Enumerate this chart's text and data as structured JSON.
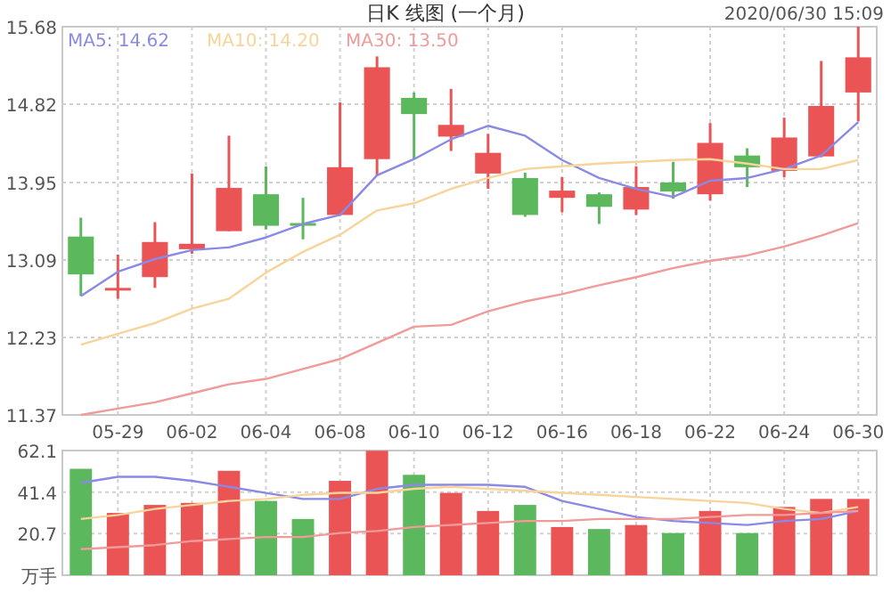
{
  "chart_data": [
    {
      "type": "candlestick",
      "title": "日K 线图 (一个月)",
      "annotations": [
        "2020/06/30 15:09"
      ],
      "categories": [
        null,
        "05-29",
        null,
        "06-02",
        null,
        "06-04",
        null,
        "06-08",
        null,
        "06-10",
        null,
        "06-12",
        null,
        "06-16",
        null,
        "06-18",
        null,
        "06-22",
        null,
        "06-24",
        null,
        "06-30"
      ],
      "ohlc": [
        [
          13.35,
          13.56,
          12.69,
          12.93
        ],
        [
          12.76,
          13.15,
          12.66,
          12.78
        ],
        [
          12.9,
          13.51,
          12.78,
          13.29
        ],
        [
          13.21,
          14.05,
          13.16,
          13.27
        ],
        [
          13.41,
          14.47,
          13.41,
          13.89
        ],
        [
          13.82,
          14.13,
          13.43,
          13.47
        ],
        [
          13.5,
          13.78,
          13.32,
          13.48
        ],
        [
          13.59,
          14.84,
          13.58,
          14.12
        ],
        [
          14.21,
          15.35,
          14.03,
          15.23
        ],
        [
          14.89,
          14.95,
          14.21,
          14.71
        ],
        [
          14.46,
          14.99,
          14.3,
          14.59
        ],
        [
          14.05,
          14.49,
          13.88,
          14.28
        ],
        [
          14.0,
          14.06,
          13.57,
          13.59
        ],
        [
          13.78,
          14.01,
          13.62,
          13.86
        ],
        [
          13.82,
          13.84,
          13.49,
          13.68
        ],
        [
          13.65,
          14.13,
          13.59,
          13.9
        ],
        [
          13.95,
          14.18,
          13.77,
          13.85
        ],
        [
          13.82,
          14.61,
          13.75,
          14.39
        ],
        [
          14.25,
          14.33,
          13.9,
          14.12
        ],
        [
          14.08,
          14.67,
          14.01,
          14.45
        ],
        [
          14.24,
          15.3,
          14.23,
          14.8
        ],
        [
          14.95,
          15.68,
          14.63,
          15.34
        ]
      ],
      "colors": [
        "#5cb85c",
        "#ea5455",
        "#ea5455",
        "#ea5455",
        "#ea5455",
        "#5cb85c",
        "#5cb85c",
        "#ea5455",
        "#ea5455",
        "#5cb85c",
        "#ea5455",
        "#ea5455",
        "#5cb85c",
        "#ea5455",
        "#5cb85c",
        "#ea5455",
        "#5cb85c",
        "#ea5455",
        "#5cb85c",
        "#ea5455",
        "#ea5455",
        "#ea5455"
      ],
      "series": [
        {
          "type": "line",
          "name": "MA5: 14.62",
          "color": "#8a8ae6",
          "values": [
            12.69,
            12.96,
            13.1,
            13.2,
            13.23,
            13.34,
            13.49,
            13.59,
            14.03,
            14.21,
            14.43,
            14.58,
            14.47,
            14.2,
            14.0,
            13.88,
            13.79,
            13.97,
            14.0,
            14.1,
            14.25,
            14.62
          ]
        },
        {
          "type": "line",
          "name": "MA10: 14.20",
          "color": "#f7d49a",
          "values": [
            12.15,
            12.27,
            12.39,
            12.55,
            12.66,
            12.95,
            13.18,
            13.37,
            13.64,
            13.72,
            13.88,
            14.0,
            14.1,
            14.13,
            14.16,
            14.18,
            14.2,
            14.21,
            14.16,
            14.1,
            14.1,
            14.2
          ]
        },
        {
          "type": "line",
          "name": "MA30: 13.50",
          "color": "#f09a9a",
          "values": [
            11.37,
            11.44,
            11.51,
            11.61,
            11.71,
            11.77,
            11.88,
            11.99,
            12.17,
            12.35,
            12.37,
            12.52,
            12.63,
            12.71,
            12.81,
            12.9,
            13.0,
            13.08,
            13.14,
            13.24,
            13.36,
            13.5
          ]
        }
      ],
      "ylim": [
        11.37,
        15.68
      ],
      "yticks": [
        11.37,
        12.23,
        13.09,
        13.95,
        14.82,
        15.68
      ],
      "grid": true,
      "legend": "top left"
    },
    {
      "type": "bar",
      "categories": [
        null,
        null,
        null,
        null,
        null,
        null,
        null,
        null,
        null,
        null,
        null,
        null,
        null,
        null,
        null,
        null,
        null,
        null,
        null,
        null,
        null,
        null
      ],
      "values": [
        53,
        31,
        35,
        36,
        52,
        37,
        28,
        47,
        62,
        50,
        41,
        32,
        35,
        24,
        23,
        25,
        21,
        32,
        21,
        34,
        38,
        38
      ],
      "colors": [
        "#5cb85c",
        "#ea5455",
        "#ea5455",
        "#ea5455",
        "#ea5455",
        "#5cb85c",
        "#5cb85c",
        "#ea5455",
        "#ea5455",
        "#5cb85c",
        "#ea5455",
        "#ea5455",
        "#5cb85c",
        "#ea5455",
        "#5cb85c",
        "#ea5455",
        "#5cb85c",
        "#ea5455",
        "#5cb85c",
        "#ea5455",
        "#ea5455",
        "#ea5455"
      ],
      "series": [
        {
          "type": "line",
          "color": "#8a8ae6",
          "values": [
            46,
            49,
            49,
            47,
            44,
            41,
            38,
            38,
            43,
            45,
            45,
            45,
            44,
            37,
            33,
            29,
            27,
            26,
            25,
            27,
            28,
            32
          ]
        },
        {
          "type": "line",
          "color": "#f7d49a",
          "values": [
            28,
            30,
            33,
            35,
            37,
            38,
            40,
            41,
            41,
            43,
            44,
            43,
            42,
            41,
            40,
            39,
            38,
            37,
            36,
            33,
            31,
            34
          ]
        },
        {
          "type": "line",
          "color": "#f09a9a",
          "values": [
            13,
            14,
            15,
            17,
            18,
            19,
            19,
            21,
            22,
            24,
            25,
            26,
            27,
            27,
            28,
            28,
            28,
            29,
            30,
            30,
            31,
            32
          ]
        }
      ],
      "ylim": [
        0,
        62.1
      ],
      "yticks": [
        {
          "value": 0,
          "label": "万手"
        },
        20.7,
        41.4,
        62.1
      ],
      "grid": true
    }
  ]
}
